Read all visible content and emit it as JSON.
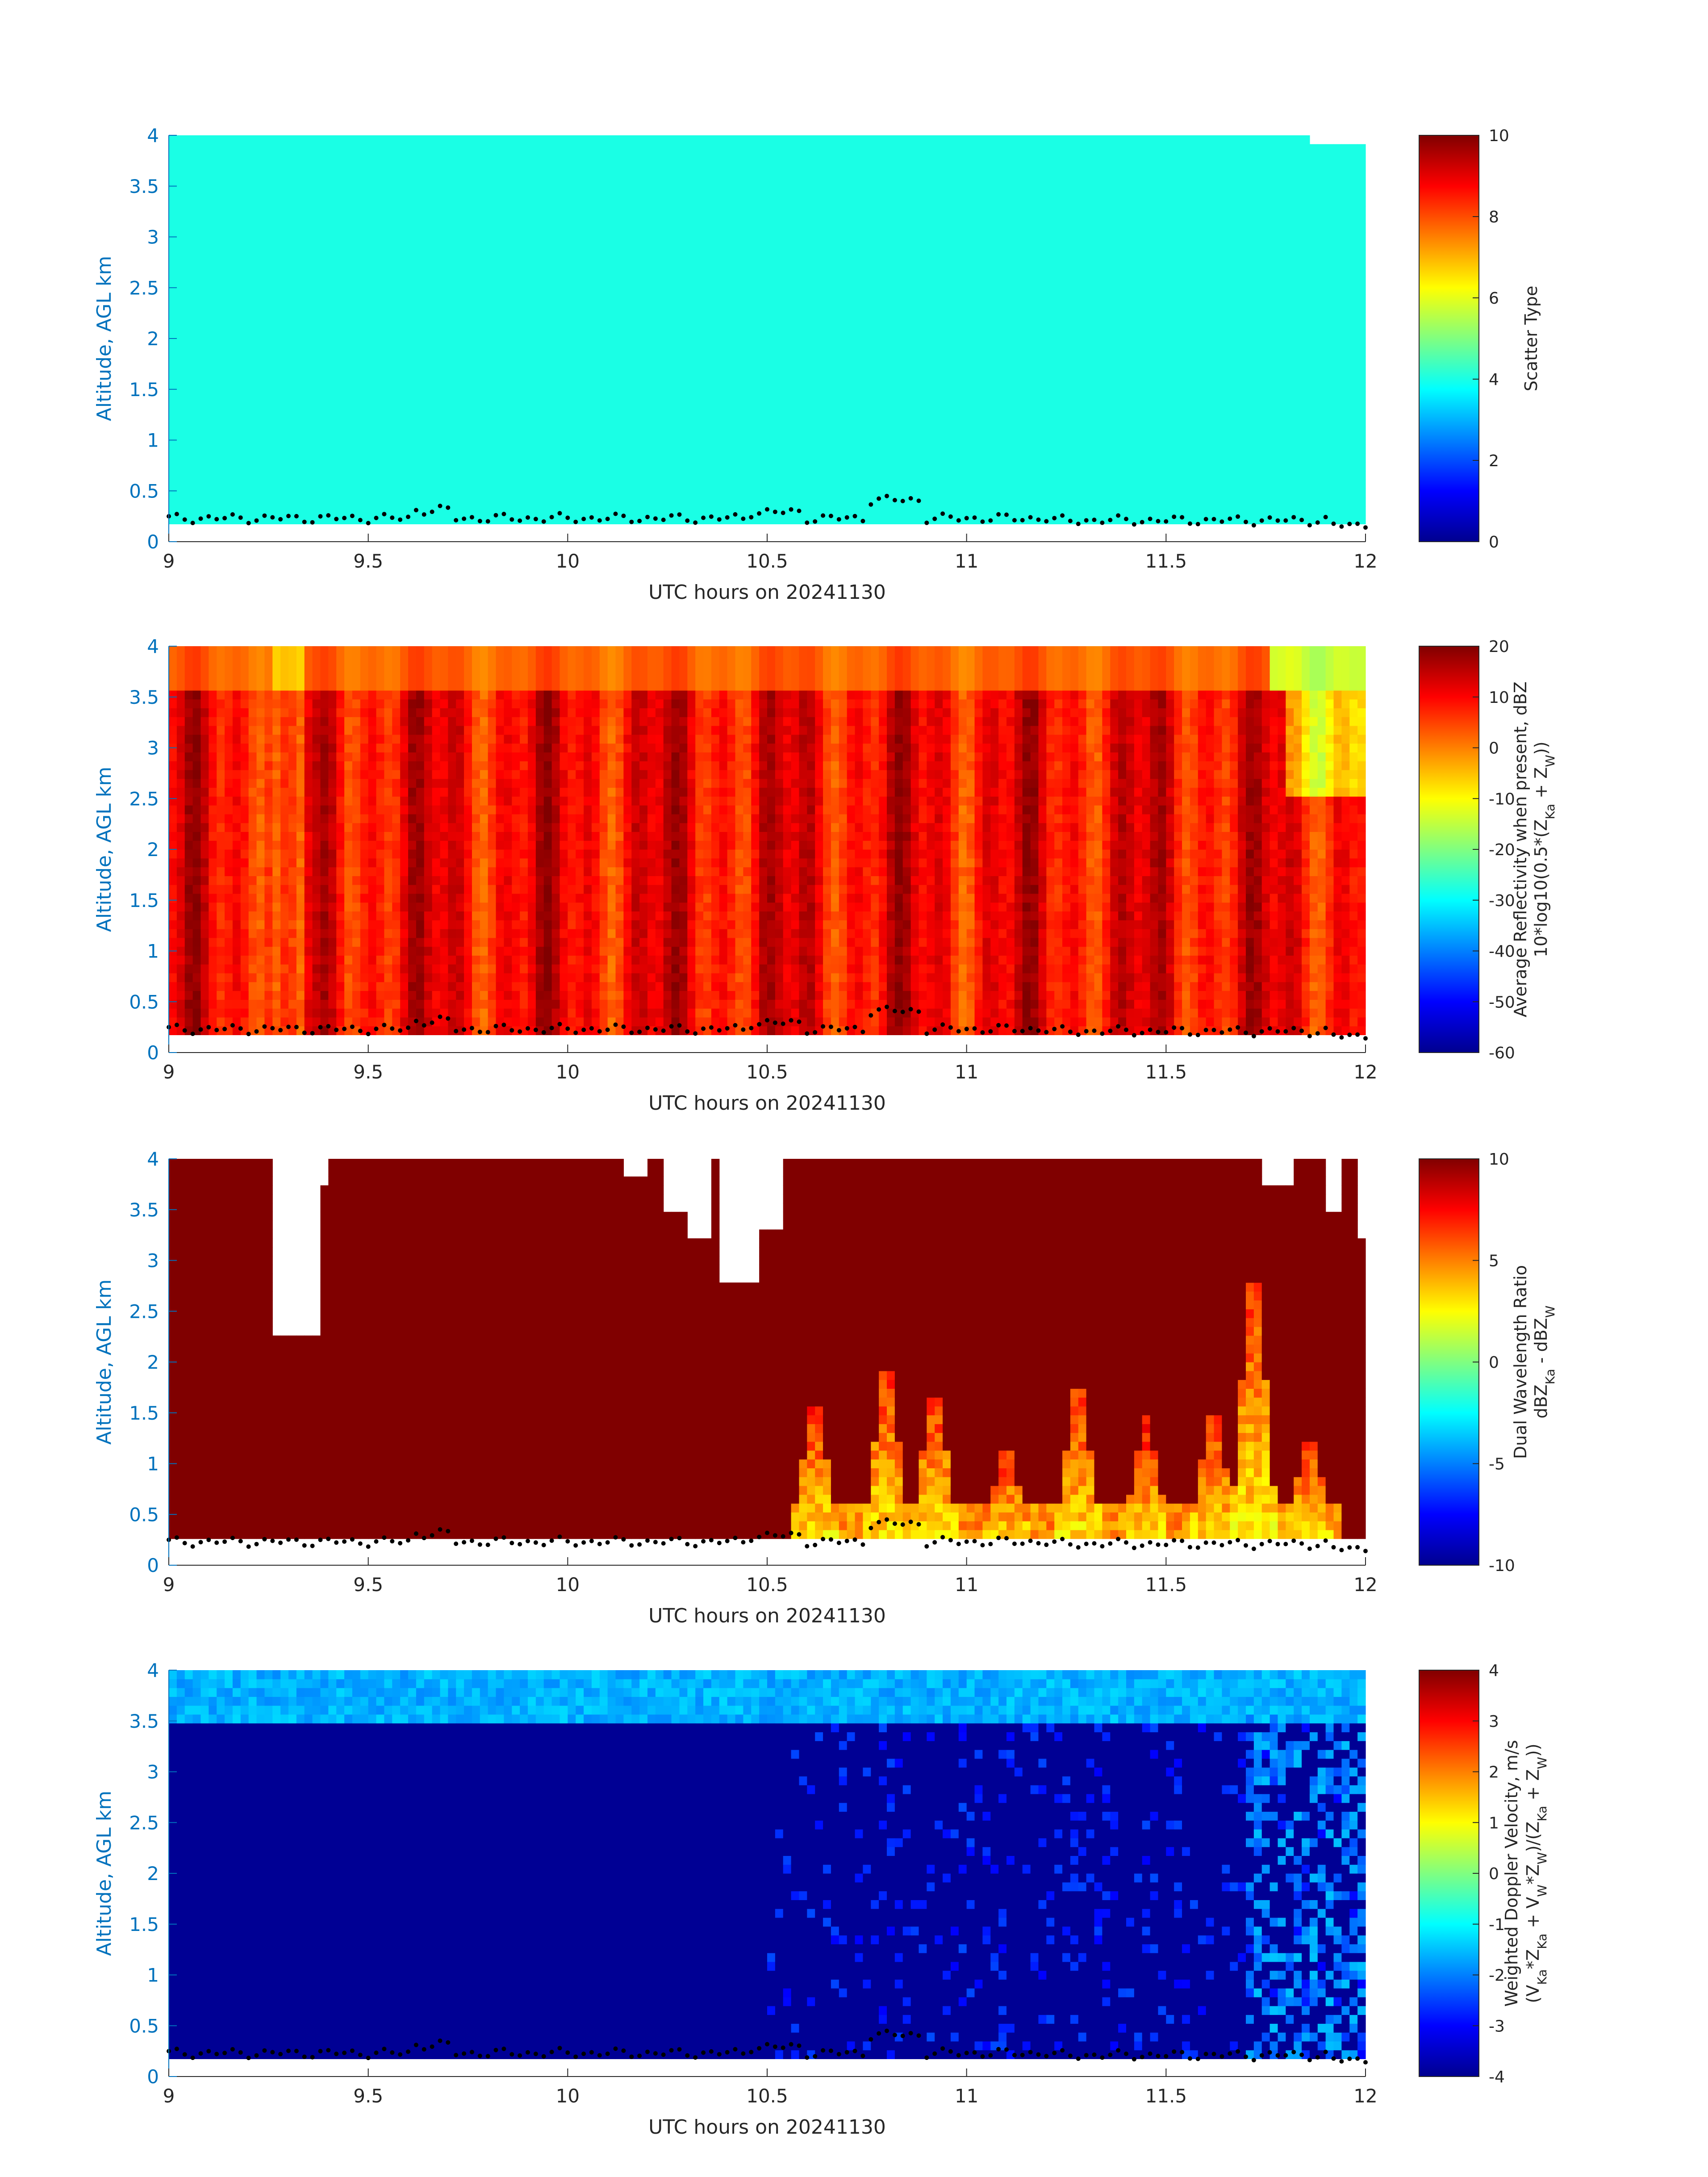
{
  "chart_data": [
    {
      "type": "heatmap",
      "xlabel": "UTC hours on 20241130",
      "ylabel": "Altitude, AGL km",
      "xlim": [
        9,
        12
      ],
      "ylim": [
        0,
        4
      ],
      "xticks": [
        "9",
        "9.5",
        "10",
        "10.5",
        "11",
        "11.5",
        "12"
      ],
      "yticks": [
        "0",
        "0.5",
        "1",
        "1.5",
        "2",
        "2.5",
        "3",
        "3.5",
        "4"
      ],
      "colorbar": {
        "title": [
          "Scatter Type"
        ],
        "limits": [
          0,
          10
        ],
        "ticks": [
          "0",
          "2",
          "4",
          "6",
          "8",
          "10"
        ]
      },
      "summary": "Uniform scatter type ≈4 from ~0.2 km to 4 km across 9–12 UTC; gap near 11.85–12 at top",
      "dominant_value": 4,
      "valid_bottom_km": 0.2
    },
    {
      "type": "heatmap",
      "xlabel": "UTC hours on 20241130",
      "ylabel": "Altitude, AGL km",
      "xlim": [
        9,
        12
      ],
      "ylim": [
        0,
        4
      ],
      "xticks": [
        "9",
        "9.5",
        "10",
        "10.5",
        "11",
        "11.5",
        "12"
      ],
      "yticks": [
        "0",
        "0.5",
        "1",
        "1.5",
        "2",
        "2.5",
        "3",
        "3.5",
        "4"
      ],
      "colorbar": {
        "title": [
          "Average Reflectivity when present, dBZ",
          "10*log10(0.5*(Z",
          "Ka",
          " + Z",
          "W",
          "))"
        ],
        "limits": [
          -60,
          20
        ],
        "ticks": [
          "-60",
          "-50",
          "-40",
          "-30",
          "-20",
          "-10",
          "0",
          "10",
          "20"
        ]
      },
      "summary": "Reflectivity mostly 5–15 dBZ below ~3.6 km, lower (-5 to 5 dBZ) above; weak echoes near 11.7–12 UTC aloft",
      "layer_top_km": 3.6
    },
    {
      "type": "heatmap",
      "xlabel": "UTC hours on 20241130",
      "ylabel": "Altitude, AGL km",
      "xlim": [
        9,
        12
      ],
      "ylim": [
        0,
        4
      ],
      "xticks": [
        "9",
        "9.5",
        "10",
        "10.5",
        "11",
        "11.5",
        "12"
      ],
      "yticks": [
        "0",
        "0.5",
        "1",
        "1.5",
        "2",
        "2.5",
        "3",
        "3.5",
        "4"
      ],
      "colorbar": {
        "title": [
          "Dual Wavelength Ratio",
          "dBZ",
          "Ka",
          " - dBZ",
          "W"
        ],
        "limits": [
          -10,
          10
        ],
        "ticks": [
          "-10",
          "-5",
          "0",
          "5",
          "10"
        ]
      },
      "summary": "DWR saturated at 10 over most of domain; 3–8 dB columns 10.55–11.9 UTC reaching up to ~3 km near 11.72 UTC"
    },
    {
      "type": "heatmap",
      "xlabel": "UTC hours on 20241130",
      "ylabel": "Altitude, AGL km",
      "xlim": [
        9,
        12
      ],
      "ylim": [
        0,
        4
      ],
      "xticks": [
        "9",
        "9.5",
        "10",
        "10.5",
        "11",
        "11.5",
        "12"
      ],
      "yticks": [
        "0",
        "0.5",
        "1",
        "1.5",
        "2",
        "2.5",
        "3",
        "3.5",
        "4"
      ],
      "colorbar": {
        "title": [
          "Weighted Doppler Velocity, m/s",
          "(V",
          "Ka",
          "*Z",
          "Ka",
          " + V",
          "W",
          "*Z",
          "W",
          ")/(Z",
          "Ka",
          " + Z",
          "W",
          "))"
        ],
        "limits": [
          -4,
          4
        ],
        "ticks": [
          "-4",
          "-3",
          "-2",
          "-1",
          "0",
          "1",
          "2",
          "3",
          "4"
        ]
      },
      "summary": "Velocity ≈ -4 m/s below ~3.5 km, -1 to -2 m/s above; lighter columns 10.5–12 UTC"
    }
  ],
  "colors": {
    "axis_blue": "#0072bd",
    "scatter_fill": "#1effd8",
    "dots": "#000000"
  }
}
